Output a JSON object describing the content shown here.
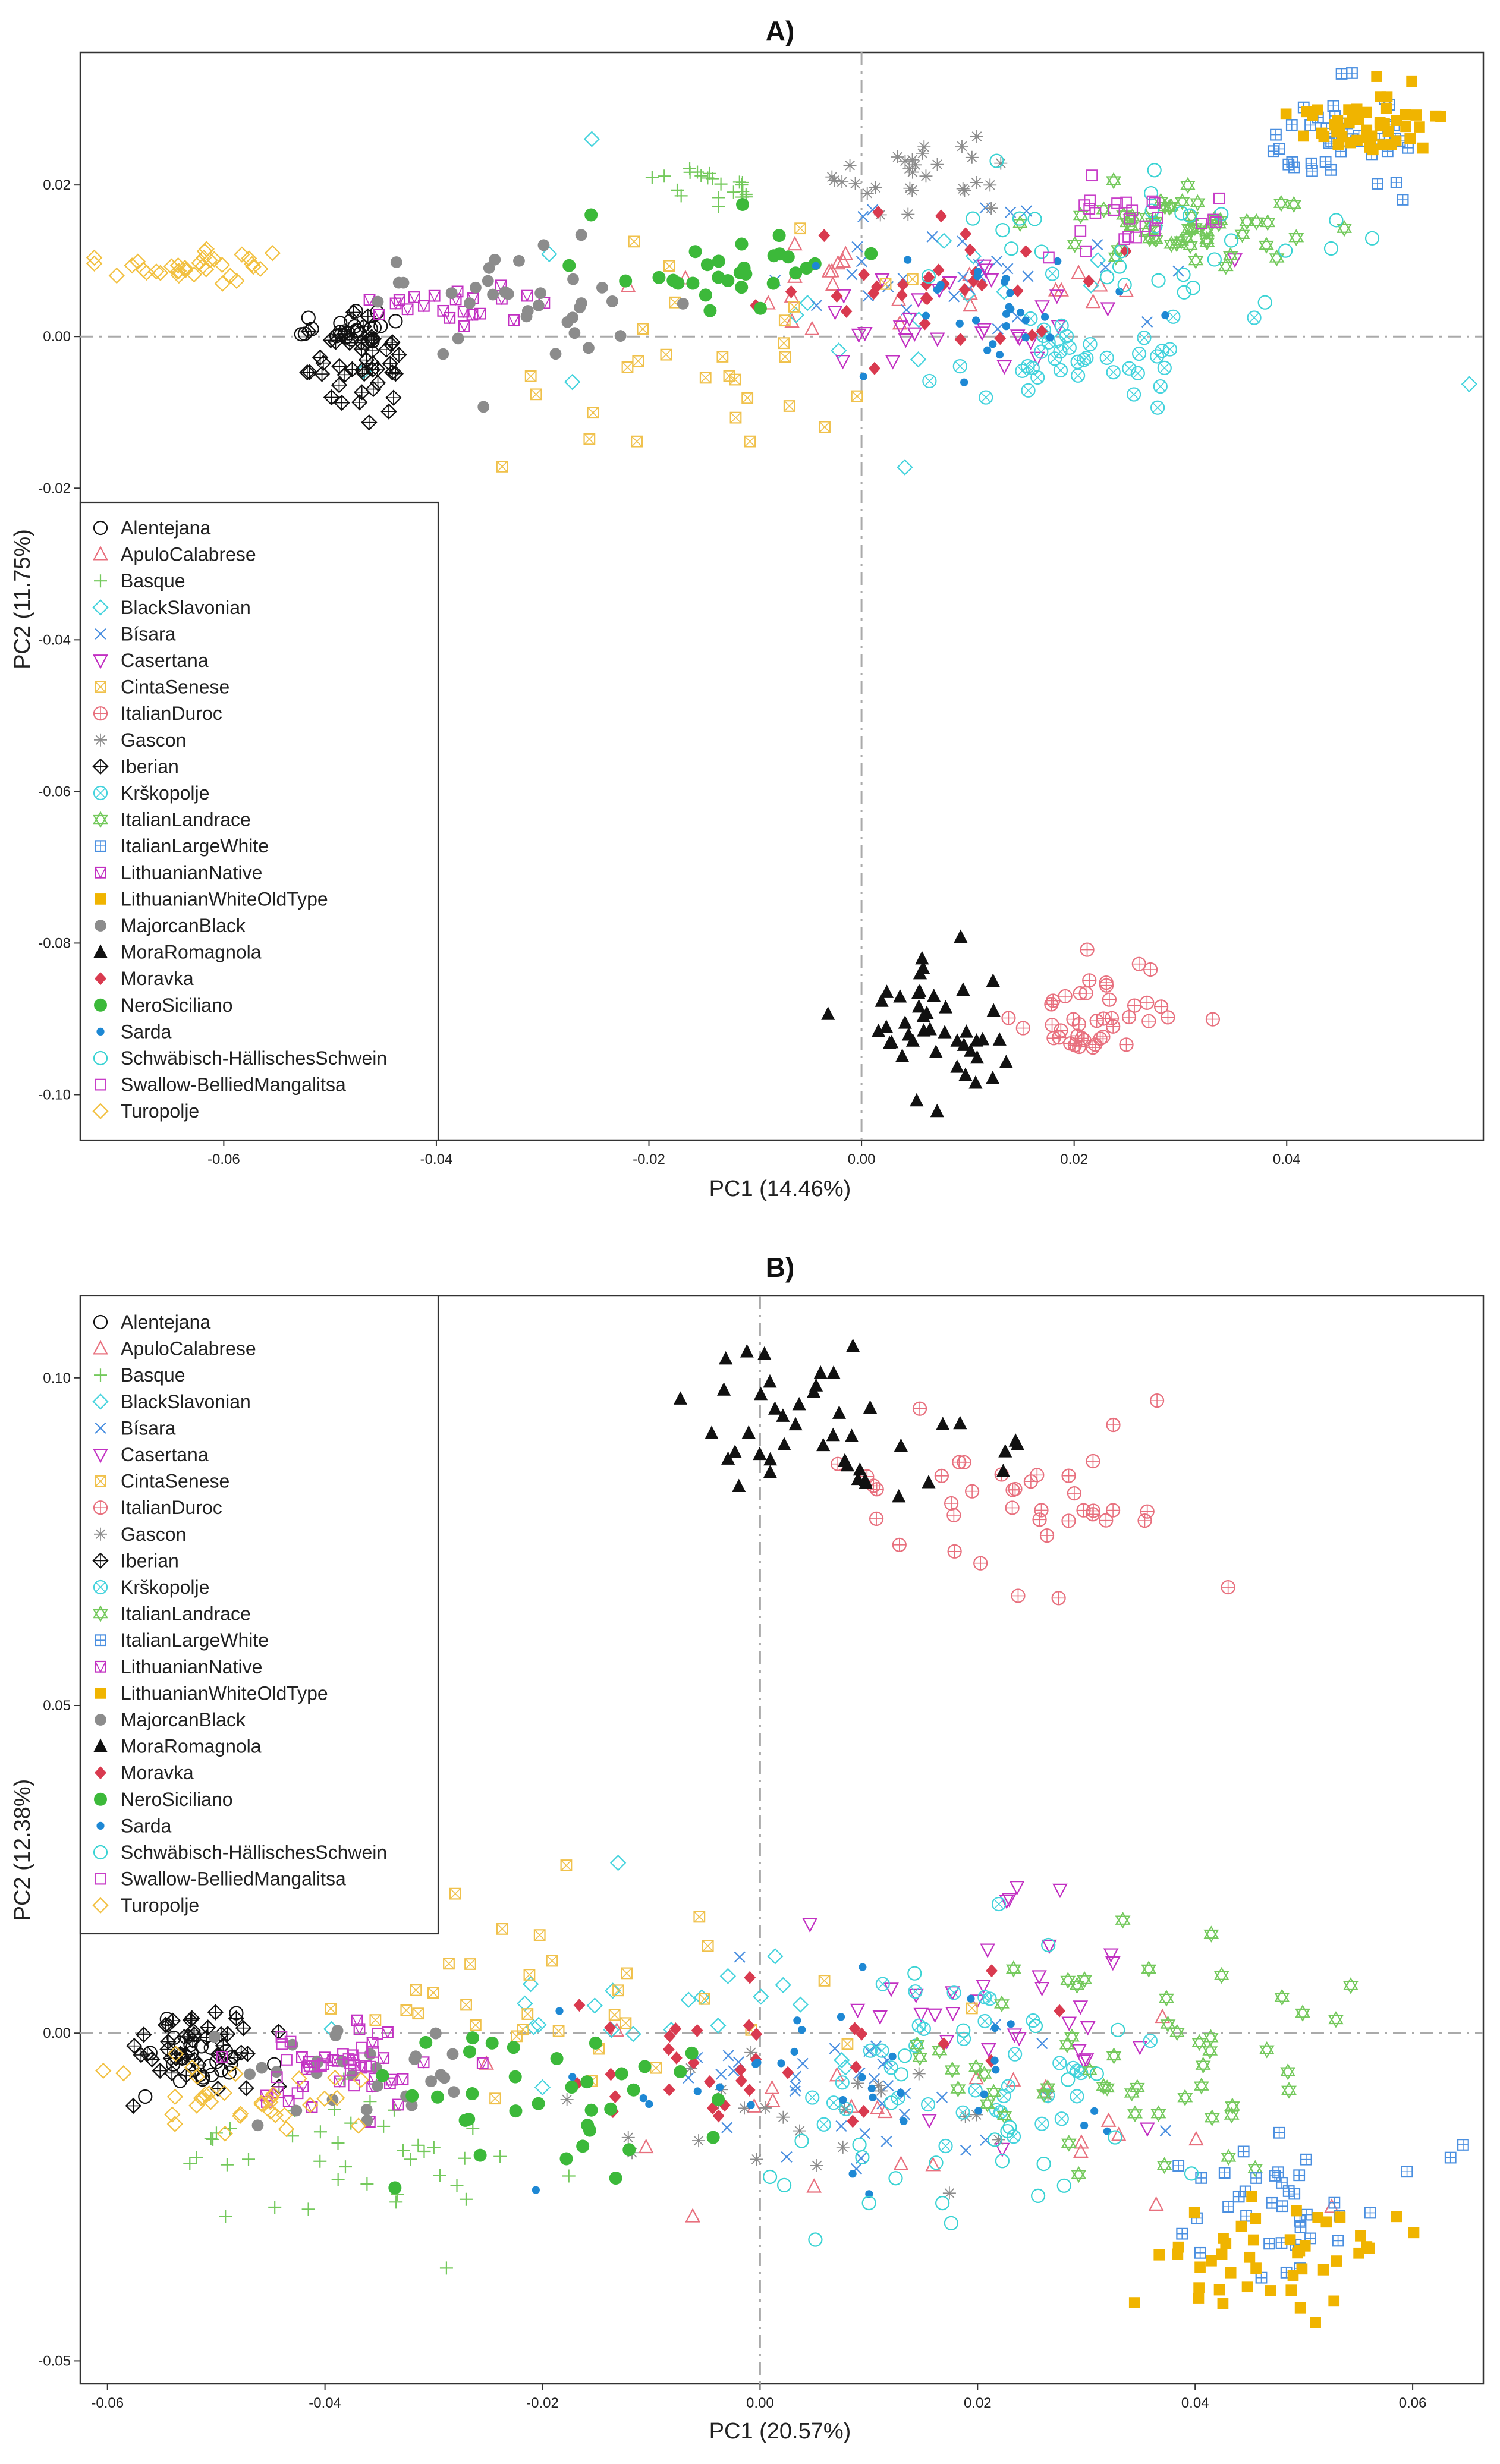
{
  "colors": {
    "black": "#111111",
    "pink": "#e8707e",
    "green": "#74c95c",
    "cyan": "#44d3dd",
    "blue": "#4a8fe0",
    "magenta": "#c230c2",
    "gold": "#f0c14b",
    "grey": "#8c8c8c",
    "darkgrey": "#8c8c8c",
    "yellow": "#f0b400",
    "red": "#d93a4f",
    "nero": "#3cb93a",
    "sarda": "#1e88d4",
    "mint": "#39d3d3",
    "orchid": "#c83ec8",
    "wheat": "#f2c040"
  },
  "breeds": [
    {
      "name": "Alentejana",
      "marker": "circle-open",
      "color": "black"
    },
    {
      "name": "ApuloCalabrese",
      "marker": "triangle-open",
      "color": "pink"
    },
    {
      "name": "Basque",
      "marker": "plus",
      "color": "green"
    },
    {
      "name": "BlackSlavonian",
      "marker": "diamond-open",
      "color": "cyan"
    },
    {
      "name": "Bísara",
      "marker": "x",
      "color": "blue"
    },
    {
      "name": "Casertana",
      "marker": "triangle-down-open",
      "color": "magenta"
    },
    {
      "name": "CintaSenese",
      "marker": "square-x",
      "color": "gold"
    },
    {
      "name": "ItalianDuroc",
      "marker": "circle-plus",
      "color": "pink"
    },
    {
      "name": "Gascon",
      "marker": "asterisk",
      "color": "grey"
    },
    {
      "name": "Iberian",
      "marker": "diamond-plus",
      "color": "black"
    },
    {
      "name": "Krškopolje",
      "marker": "circle-x",
      "color": "cyan"
    },
    {
      "name": "ItalianLandrace",
      "marker": "star-triangles",
      "color": "green"
    },
    {
      "name": "ItalianLargeWhite",
      "marker": "square-plus",
      "color": "blue"
    },
    {
      "name": "LithuanianNative",
      "marker": "square-triangle",
      "color": "magenta"
    },
    {
      "name": "LithuanianWhiteOldType",
      "marker": "square-filled",
      "color": "yellow"
    },
    {
      "name": "MajorcanBlack",
      "marker": "circle-filled",
      "color": "darkgrey"
    },
    {
      "name": "MoraRomagnola",
      "marker": "triangle-filled",
      "color": "black"
    },
    {
      "name": "Moravka",
      "marker": "diamond-filled",
      "color": "red"
    },
    {
      "name": "NeroSiciliano",
      "marker": "circle-filled-big",
      "color": "nero"
    },
    {
      "name": "Sarda",
      "marker": "dot",
      "color": "sarda"
    },
    {
      "name": "Schwäbisch-HällischesSchwein",
      "marker": "circle-open",
      "color": "mint"
    },
    {
      "name": "Swallow-BelliedMangalitsa",
      "marker": "square-open",
      "color": "orchid"
    },
    {
      "name": "Turopolje",
      "marker": "diamond-open",
      "color": "wheat"
    }
  ],
  "chart_data": [
    {
      "type": "scatter",
      "title": "A)",
      "xlabel": "PC1 (14.46%)",
      "ylabel": "PC2 (11.75%)",
      "xlim": [
        -0.0735,
        0.0585
      ],
      "ylim": [
        -0.106,
        0.0375
      ],
      "xticks": [
        -0.06,
        -0.04,
        -0.02,
        0.0,
        0.02,
        0.04
      ],
      "xtick_labels": [
        "-0.06",
        "-0.04",
        "-0.02",
        "0.00",
        "0.02",
        "0.04"
      ],
      "yticks": [
        -0.1,
        -0.08,
        -0.06,
        -0.04,
        -0.02,
        0.0,
        0.02
      ],
      "ytick_labels": [
        "-0.10",
        "-0.08",
        "-0.06",
        "-0.04",
        "-0.02",
        "0.00",
        "0.02"
      ],
      "legend": "top-left",
      "clusters": [
        {
          "breed": "Alentejana",
          "cx": -0.049,
          "cy": 0.001,
          "sx": 0.003,
          "sy": 0.0012,
          "n": 25
        },
        {
          "breed": "ApuloCalabrese",
          "cx": 0.005,
          "cy": 0.006,
          "sx": 0.013,
          "sy": 0.004,
          "n": 25
        },
        {
          "breed": "Basque",
          "cx": -0.014,
          "cy": 0.0195,
          "sx": 0.003,
          "sy": 0.0018,
          "n": 22
        },
        {
          "breed": "BlackSlavonian",
          "cx": 0.005,
          "cy": 0.002,
          "sx": 0.025,
          "sy": 0.008,
          "n": 18
        },
        {
          "breed": "Bísara",
          "cx": 0.011,
          "cy": 0.007,
          "sx": 0.009,
          "sy": 0.004,
          "n": 30
        },
        {
          "breed": "Casertana",
          "cx": 0.009,
          "cy": 0.004,
          "sx": 0.009,
          "sy": 0.004,
          "n": 30
        },
        {
          "breed": "CintaSenese",
          "cx": -0.012,
          "cy": -0.003,
          "sx": 0.01,
          "sy": 0.007,
          "n": 30
        },
        {
          "breed": "ItalianDuroc",
          "cx": 0.023,
          "cy": -0.089,
          "sx": 0.004,
          "sy": 0.0035,
          "n": 42
        },
        {
          "breed": "Gascon",
          "cx": 0.005,
          "cy": 0.021,
          "sx": 0.005,
          "sy": 0.0025,
          "n": 30
        },
        {
          "breed": "Iberian",
          "cx": -0.047,
          "cy": -0.003,
          "sx": 0.0025,
          "sy": 0.0035,
          "n": 45
        },
        {
          "breed": "Krškopolje",
          "cx": 0.021,
          "cy": -0.002,
          "sx": 0.006,
          "sy": 0.0035,
          "n": 40
        },
        {
          "breed": "ItalianLandrace",
          "cx": 0.03,
          "cy": 0.015,
          "sx": 0.006,
          "sy": 0.0025,
          "n": 55
        },
        {
          "breed": "ItalianLargeWhite",
          "cx": 0.045,
          "cy": 0.026,
          "sx": 0.004,
          "sy": 0.003,
          "n": 42
        },
        {
          "breed": "LithuanianNative",
          "cx": -0.038,
          "cy": 0.005,
          "sx": 0.004,
          "sy": 0.0015,
          "n": 22
        },
        {
          "breed": "LithuanianWhiteOldType",
          "cx": 0.047,
          "cy": 0.028,
          "sx": 0.003,
          "sy": 0.0025,
          "n": 48
        },
        {
          "breed": "MajorcanBlack",
          "cx": -0.032,
          "cy": 0.005,
          "sx": 0.006,
          "sy": 0.004,
          "n": 35
        },
        {
          "breed": "MoraRomagnola",
          "cx": 0.007,
          "cy": -0.092,
          "sx": 0.0035,
          "sy": 0.005,
          "n": 45
        },
        {
          "breed": "Moravka",
          "cx": 0.005,
          "cy": 0.008,
          "sx": 0.01,
          "sy": 0.004,
          "n": 35
        },
        {
          "breed": "NeroSiciliano",
          "cx": -0.012,
          "cy": 0.009,
          "sx": 0.007,
          "sy": 0.003,
          "n": 30
        },
        {
          "breed": "Sarda",
          "cx": 0.012,
          "cy": 0.003,
          "sx": 0.008,
          "sy": 0.004,
          "n": 30
        },
        {
          "breed": "Schwäbisch-HällischesSchwein",
          "cx": 0.025,
          "cy": 0.012,
          "sx": 0.009,
          "sy": 0.006,
          "n": 30
        },
        {
          "breed": "Swallow-BelliedMangalitsa",
          "cx": 0.025,
          "cy": 0.015,
          "sx": 0.004,
          "sy": 0.002,
          "n": 25
        },
        {
          "breed": "Turopolje",
          "cx": -0.062,
          "cy": 0.009,
          "sx": 0.004,
          "sy": 0.0012,
          "n": 35
        }
      ]
    },
    {
      "type": "scatter",
      "title": "B)",
      "xlabel": "PC1 (20.57%)",
      "ylabel": "PC2 (12.38%)",
      "xlim": [
        -0.0625,
        0.0665
      ],
      "ylim": [
        -0.0535,
        0.1125
      ],
      "xticks": [
        -0.06,
        -0.04,
        -0.02,
        0.0,
        0.02,
        0.04,
        0.06
      ],
      "xtick_labels": [
        "-0.06",
        "-0.04",
        "-0.02",
        "0.00",
        "0.02",
        "0.04",
        "0.06"
      ],
      "yticks": [
        -0.05,
        0.0,
        0.05,
        0.1
      ],
      "ytick_labels": [
        "-0.05",
        "0.00",
        "0.05",
        "0.10"
      ],
      "legend": "top-left",
      "clusters": [
        {
          "breed": "Alentejana",
          "cx": -0.051,
          "cy": -0.004,
          "sx": 0.003,
          "sy": 0.003,
          "n": 25
        },
        {
          "breed": "ApuloCalabrese",
          "cx": 0.01,
          "cy": -0.01,
          "sx": 0.016,
          "sy": 0.01,
          "n": 25
        },
        {
          "breed": "Basque",
          "cx": -0.038,
          "cy": -0.02,
          "sx": 0.008,
          "sy": 0.006,
          "n": 40
        },
        {
          "breed": "BlackSlavonian",
          "cx": 0.0,
          "cy": 0.005,
          "sx": 0.012,
          "sy": 0.008,
          "n": 22
        },
        {
          "breed": "Bísara",
          "cx": 0.01,
          "cy": -0.008,
          "sx": 0.01,
          "sy": 0.007,
          "n": 35
        },
        {
          "breed": "Casertana",
          "cx": 0.022,
          "cy": 0.006,
          "sx": 0.007,
          "sy": 0.009,
          "n": 35
        },
        {
          "breed": "CintaSenese",
          "cx": -0.02,
          "cy": 0.005,
          "sx": 0.012,
          "sy": 0.007,
          "n": 35
        },
        {
          "breed": "ItalianDuroc",
          "cx": 0.025,
          "cy": 0.08,
          "sx": 0.008,
          "sy": 0.006,
          "n": 40
        },
        {
          "breed": "Gascon",
          "cx": 0.003,
          "cy": -0.012,
          "sx": 0.01,
          "sy": 0.006,
          "n": 25
        },
        {
          "breed": "Iberian",
          "cx": -0.052,
          "cy": -0.003,
          "sx": 0.004,
          "sy": 0.0035,
          "n": 45
        },
        {
          "breed": "Krškopolje",
          "cx": 0.018,
          "cy": -0.006,
          "sx": 0.008,
          "sy": 0.008,
          "n": 40
        },
        {
          "breed": "ItalianLandrace",
          "cx": 0.033,
          "cy": -0.005,
          "sx": 0.01,
          "sy": 0.008,
          "n": 55
        },
        {
          "breed": "ItalianLargeWhite",
          "cx": 0.049,
          "cy": -0.025,
          "sx": 0.006,
          "sy": 0.006,
          "n": 40
        },
        {
          "breed": "LithuanianNative",
          "cx": -0.038,
          "cy": -0.005,
          "sx": 0.005,
          "sy": 0.004,
          "n": 30
        },
        {
          "breed": "LithuanianWhiteOldType",
          "cx": 0.047,
          "cy": -0.035,
          "sx": 0.005,
          "sy": 0.005,
          "n": 45
        },
        {
          "breed": "MajorcanBlack",
          "cx": -0.036,
          "cy": -0.006,
          "sx": 0.006,
          "sy": 0.004,
          "n": 30
        },
        {
          "breed": "MoraRomagnola",
          "cx": 0.004,
          "cy": 0.092,
          "sx": 0.008,
          "sy": 0.007,
          "n": 45
        },
        {
          "breed": "Moravka",
          "cx": -0.002,
          "cy": -0.004,
          "sx": 0.01,
          "sy": 0.008,
          "n": 35
        },
        {
          "breed": "NeroSiciliano",
          "cx": -0.018,
          "cy": -0.01,
          "sx": 0.008,
          "sy": 0.006,
          "n": 35
        },
        {
          "breed": "Sarda",
          "cx": 0.01,
          "cy": -0.006,
          "sx": 0.012,
          "sy": 0.008,
          "n": 35
        },
        {
          "breed": "Schwäbisch-HällischesSchwein",
          "cx": 0.02,
          "cy": -0.015,
          "sx": 0.009,
          "sy": 0.01,
          "n": 30
        },
        {
          "breed": "Swallow-BelliedMangalitsa",
          "cx": -0.04,
          "cy": -0.004,
          "sx": 0.004,
          "sy": 0.003,
          "n": 22
        },
        {
          "breed": "Turopolje",
          "cx": -0.045,
          "cy": -0.01,
          "sx": 0.006,
          "sy": 0.003,
          "n": 35
        }
      ]
    }
  ]
}
